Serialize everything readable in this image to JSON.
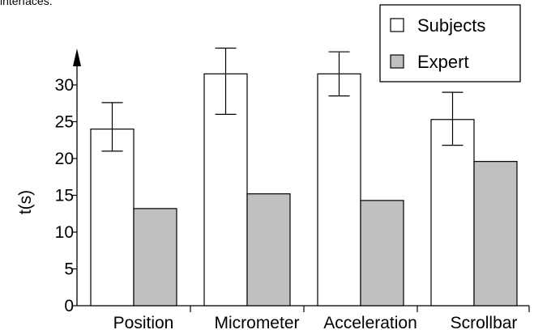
{
  "caption_fragment": "interfaces.",
  "chart_data": {
    "type": "bar",
    "categories": [
      "Position",
      "Micrometer",
      "Acceleration",
      "Scrollbar"
    ],
    "series": [
      {
        "name": "Subjects",
        "values": [
          24.0,
          31.5,
          31.5,
          25.3
        ],
        "err_low": [
          21.0,
          26.0,
          28.5,
          21.8
        ],
        "err_high": [
          27.6,
          35.0,
          34.5,
          29.0
        ],
        "color": "#ffffff"
      },
      {
        "name": "Expert",
        "values": [
          13.2,
          15.2,
          14.3,
          19.6
        ],
        "color": "#c0c0c0"
      }
    ],
    "title": "",
    "xlabel": "",
    "ylabel": "t(s)",
    "ylim": [
      0,
      30
    ],
    "yticks": [
      0,
      5,
      10,
      15,
      20,
      25,
      30
    ],
    "grid": false,
    "legend_position": "top-right"
  }
}
